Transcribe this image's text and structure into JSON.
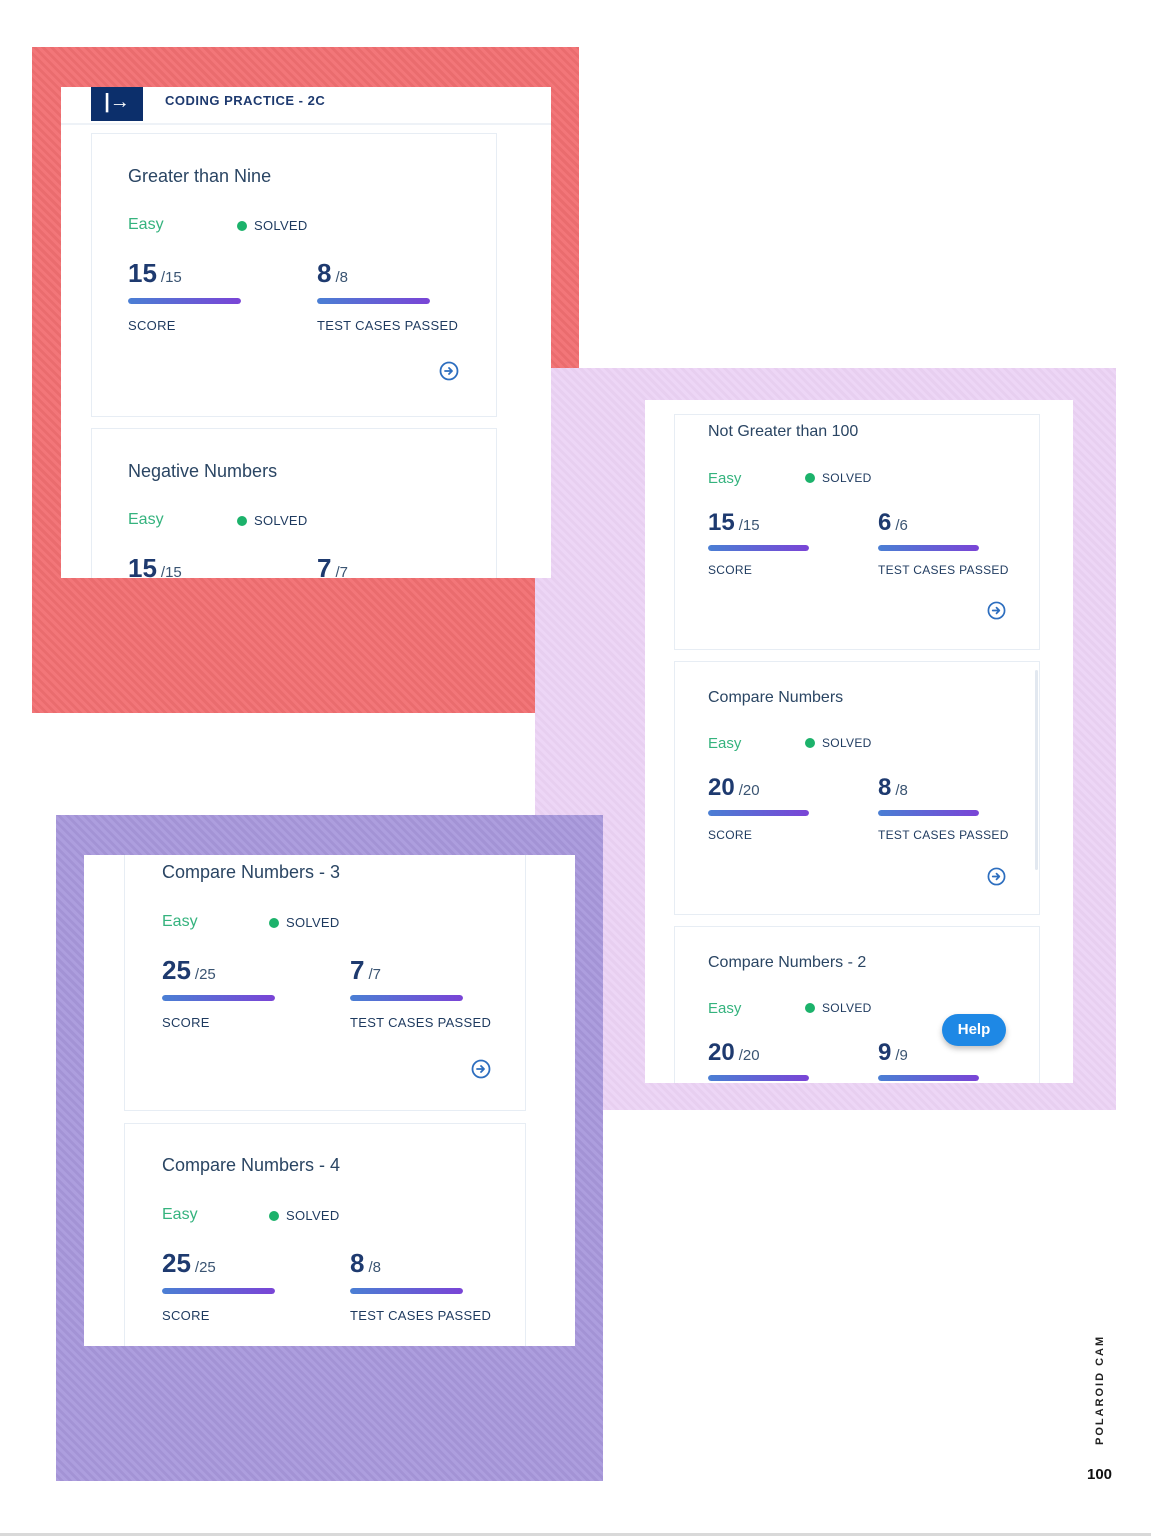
{
  "app": {
    "title": "CODING PRACTICE - 2C",
    "logo_glyph": "|→"
  },
  "labels": {
    "score": "SCORE",
    "tests": "TEST CASES PASSED"
  },
  "cards": [
    {
      "title": "Greater than Nine",
      "difficulty": "Easy",
      "status": "SOLVED",
      "score": "15",
      "score_total": "/15",
      "tests": "8",
      "tests_total": "/8"
    },
    {
      "title": "Negative Numbers",
      "difficulty": "Easy",
      "status": "SOLVED",
      "score": "15",
      "score_total": "/15",
      "tests": "7",
      "tests_total": "/7"
    },
    {
      "title": "Not Greater than 100",
      "difficulty": "Easy",
      "status": "SOLVED",
      "score": "15",
      "score_total": "/15",
      "tests": "6",
      "tests_total": "/6"
    },
    {
      "title": "Compare Numbers",
      "difficulty": "Easy",
      "status": "SOLVED",
      "score": "20",
      "score_total": "/20",
      "tests": "8",
      "tests_total": "/8"
    },
    {
      "title": "Compare Numbers - 2",
      "difficulty": "Easy",
      "status": "SOLVED",
      "score": "20",
      "score_total": "/20",
      "tests": "9",
      "tests_total": "/9"
    },
    {
      "title": "Compare Numbers - 3",
      "difficulty": "Easy",
      "status": "SOLVED",
      "score": "25",
      "score_total": "/25",
      "tests": "7",
      "tests_total": "/7"
    },
    {
      "title": "Compare Numbers - 4",
      "difficulty": "Easy",
      "status": "SOLVED",
      "score": "25",
      "score_total": "/25",
      "tests": "8",
      "tests_total": "/8"
    }
  ],
  "help_label": "Help",
  "brand": "POLAROID CAM",
  "page_number": "100",
  "colors": {
    "easy": "#35b37e",
    "solved_dot": "#1cb26b",
    "help": "#1e88e5",
    "logo_bg": "#0c2f6b"
  },
  "icons": {
    "open": "arrow-circle-right-icon",
    "logo": "logout-icon"
  }
}
